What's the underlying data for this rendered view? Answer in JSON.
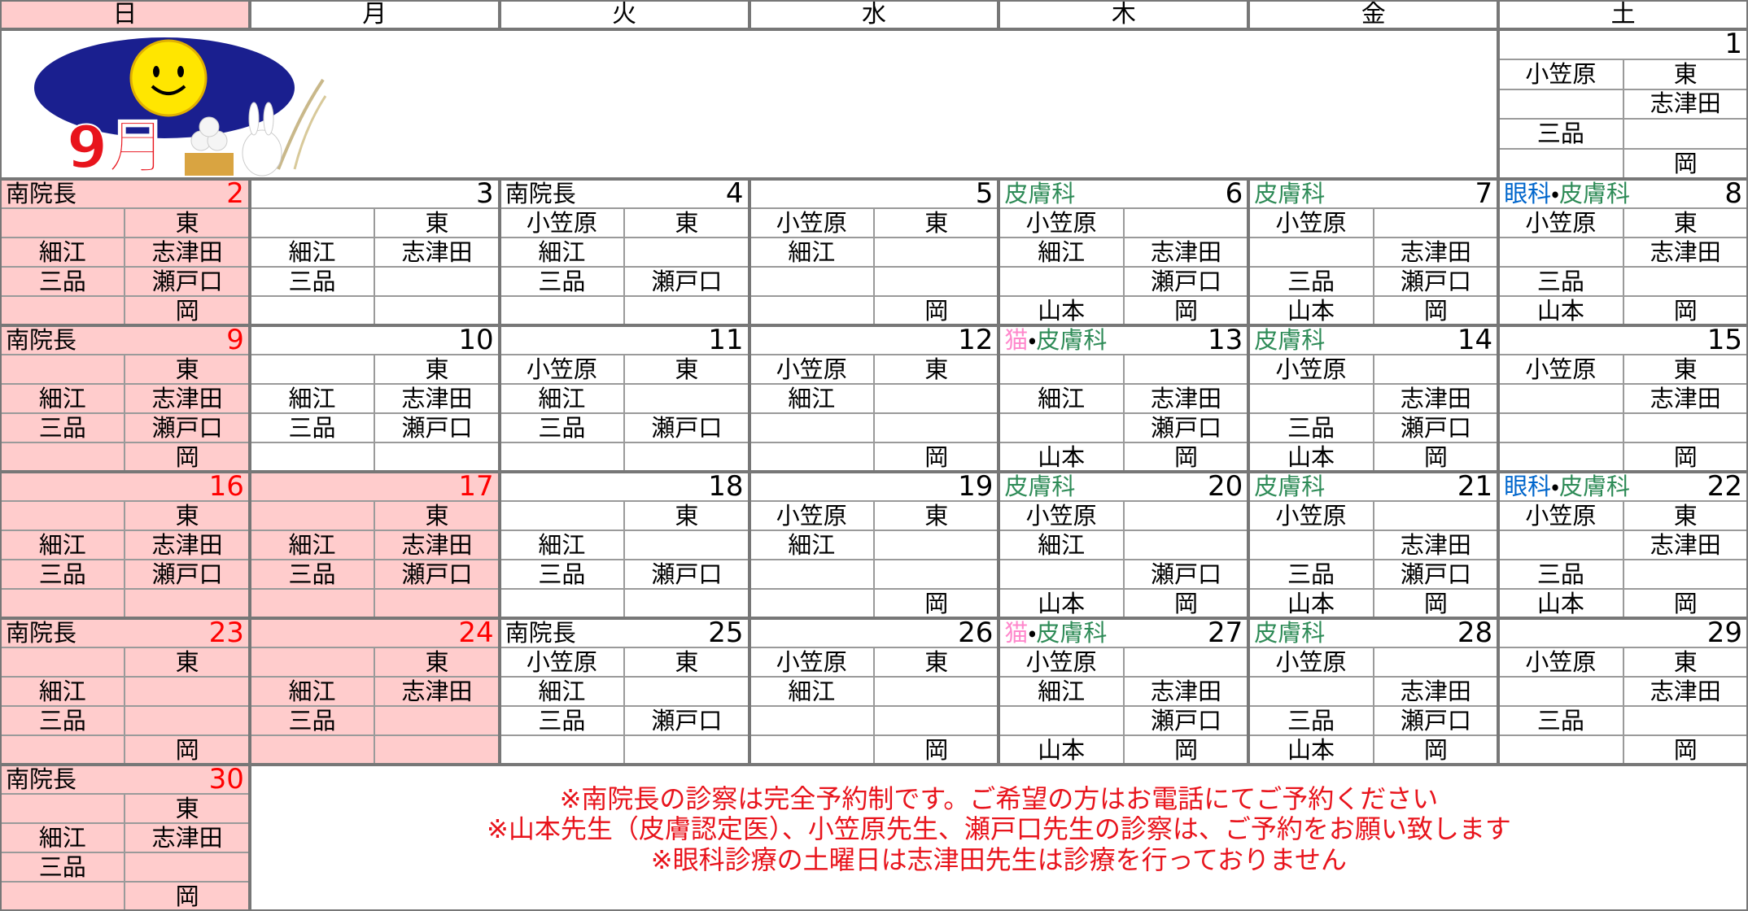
{
  "weekdays": [
    "日",
    "月",
    "火",
    "水",
    "木",
    "金",
    "土"
  ],
  "banner": {
    "month_label": "9月"
  },
  "weeks": [
    {
      "days": [
        null,
        null,
        null,
        null,
        null,
        null,
        {
          "date": 1,
          "holiday": false,
          "label": null,
          "rows": [
            [
              "小笠原",
              "東"
            ],
            [
              null,
              "志津田"
            ],
            [
              "三品",
              null
            ],
            [
              null,
              "岡"
            ]
          ]
        }
      ]
    },
    {
      "days": [
        {
          "date": 2,
          "holiday": true,
          "label": [
            {
              "text": "南院長",
              "color": "#000000"
            }
          ],
          "rows": [
            [
              null,
              "東"
            ],
            [
              "細江",
              "志津田"
            ],
            [
              "三品",
              "瀬戸口"
            ],
            [
              null,
              "岡"
            ]
          ]
        },
        {
          "date": 3,
          "holiday": false,
          "label": null,
          "rows": [
            [
              null,
              "東"
            ],
            [
              "細江",
              "志津田"
            ],
            [
              "三品",
              null
            ],
            [
              null,
              null
            ]
          ]
        },
        {
          "date": 4,
          "holiday": false,
          "label": [
            {
              "text": "南院長",
              "color": "#000000"
            }
          ],
          "rows": [
            [
              "小笠原",
              "東"
            ],
            [
              "細江",
              null
            ],
            [
              "三品",
              "瀬戸口"
            ],
            [
              null,
              null
            ]
          ]
        },
        {
          "date": 5,
          "holiday": false,
          "label": null,
          "rows": [
            [
              "小笠原",
              "東"
            ],
            [
              "細江",
              null
            ],
            [
              null,
              null
            ],
            [
              null,
              "岡"
            ]
          ]
        },
        {
          "date": 6,
          "holiday": false,
          "label": [
            {
              "text": "皮膚科",
              "color": "#2e8b57"
            }
          ],
          "rows": [
            [
              "小笠原",
              null
            ],
            [
              "細江",
              "志津田"
            ],
            [
              null,
              "瀬戸口"
            ],
            [
              "山本",
              "岡"
            ]
          ]
        },
        {
          "date": 7,
          "holiday": false,
          "label": [
            {
              "text": "皮膚科",
              "color": "#2e8b57"
            }
          ],
          "rows": [
            [
              "小笠原",
              null
            ],
            [
              null,
              "志津田"
            ],
            [
              "三品",
              "瀬戸口"
            ],
            [
              "山本",
              "岡"
            ]
          ]
        },
        {
          "date": 8,
          "holiday": false,
          "label": [
            {
              "text": "眼科",
              "color": "#0066cc"
            },
            {
              "text": "・",
              "color": "#000000"
            },
            {
              "text": "皮膚科",
              "color": "#2e8b57"
            }
          ],
          "rows": [
            [
              "小笠原",
              "東"
            ],
            [
              null,
              "志津田"
            ],
            [
              "三品",
              null
            ],
            [
              "山本",
              "岡"
            ]
          ]
        }
      ]
    },
    {
      "days": [
        {
          "date": 9,
          "holiday": true,
          "label": [
            {
              "text": "南院長",
              "color": "#000000"
            }
          ],
          "rows": [
            [
              null,
              "東"
            ],
            [
              "細江",
              "志津田"
            ],
            [
              "三品",
              "瀬戸口"
            ],
            [
              null,
              "岡"
            ]
          ]
        },
        {
          "date": 10,
          "holiday": false,
          "label": null,
          "rows": [
            [
              null,
              "東"
            ],
            [
              "細江",
              "志津田"
            ],
            [
              "三品",
              "瀬戸口"
            ],
            [
              null,
              null
            ]
          ]
        },
        {
          "date": 11,
          "holiday": false,
          "label": null,
          "rows": [
            [
              "小笠原",
              "東"
            ],
            [
              "細江",
              null
            ],
            [
              "三品",
              "瀬戸口"
            ],
            [
              null,
              null
            ]
          ]
        },
        {
          "date": 12,
          "holiday": false,
          "label": null,
          "rows": [
            [
              "小笠原",
              "東"
            ],
            [
              "細江",
              null
            ],
            [
              null,
              null
            ],
            [
              null,
              "岡"
            ]
          ]
        },
        {
          "date": 13,
          "holiday": false,
          "label": [
            {
              "text": "猫",
              "color": "#ff88cc"
            },
            {
              "text": "・",
              "color": "#000000"
            },
            {
              "text": "皮膚科",
              "color": "#2e8b57"
            }
          ],
          "rows": [
            [
              null,
              null
            ],
            [
              "細江",
              "志津田"
            ],
            [
              null,
              "瀬戸口"
            ],
            [
              "山本",
              "岡"
            ]
          ]
        },
        {
          "date": 14,
          "holiday": false,
          "label": [
            {
              "text": "皮膚科",
              "color": "#2e8b57"
            }
          ],
          "rows": [
            [
              "小笠原",
              null
            ],
            [
              null,
              "志津田"
            ],
            [
              "三品",
              "瀬戸口"
            ],
            [
              "山本",
              "岡"
            ]
          ]
        },
        {
          "date": 15,
          "holiday": false,
          "label": null,
          "rows": [
            [
              "小笠原",
              "東"
            ],
            [
              null,
              "志津田"
            ],
            [
              null,
              null
            ],
            [
              null,
              "岡"
            ]
          ]
        }
      ]
    },
    {
      "days": [
        {
          "date": 16,
          "holiday": true,
          "label": null,
          "rows": [
            [
              null,
              "東"
            ],
            [
              "細江",
              "志津田"
            ],
            [
              "三品",
              "瀬戸口"
            ],
            [
              null,
              null
            ]
          ]
        },
        {
          "date": 17,
          "holiday": true,
          "label": null,
          "rows": [
            [
              null,
              "東"
            ],
            [
              "細江",
              "志津田"
            ],
            [
              "三品",
              "瀬戸口"
            ],
            [
              null,
              null
            ]
          ]
        },
        {
          "date": 18,
          "holiday": false,
          "label": null,
          "rows": [
            [
              null,
              "東"
            ],
            [
              "細江",
              null
            ],
            [
              "三品",
              "瀬戸口"
            ],
            [
              null,
              null
            ]
          ]
        },
        {
          "date": 19,
          "holiday": false,
          "label": null,
          "rows": [
            [
              "小笠原",
              "東"
            ],
            [
              "細江",
              null
            ],
            [
              null,
              null
            ],
            [
              null,
              "岡"
            ]
          ]
        },
        {
          "date": 20,
          "holiday": false,
          "label": [
            {
              "text": "皮膚科",
              "color": "#2e8b57"
            }
          ],
          "rows": [
            [
              "小笠原",
              null
            ],
            [
              "細江",
              null
            ],
            [
              null,
              "瀬戸口"
            ],
            [
              "山本",
              "岡"
            ]
          ]
        },
        {
          "date": 21,
          "holiday": false,
          "label": [
            {
              "text": "皮膚科",
              "color": "#2e8b57"
            }
          ],
          "rows": [
            [
              "小笠原",
              null
            ],
            [
              null,
              "志津田"
            ],
            [
              "三品",
              "瀬戸口"
            ],
            [
              "山本",
              "岡"
            ]
          ]
        },
        {
          "date": 22,
          "holiday": false,
          "label": [
            {
              "text": "眼科",
              "color": "#0066cc"
            },
            {
              "text": "・",
              "color": "#000000"
            },
            {
              "text": "皮膚科",
              "color": "#2e8b57"
            }
          ],
          "rows": [
            [
              "小笠原",
              "東"
            ],
            [
              null,
              "志津田"
            ],
            [
              "三品",
              null
            ],
            [
              "山本",
              "岡"
            ]
          ]
        }
      ]
    },
    {
      "days": [
        {
          "date": 23,
          "holiday": true,
          "label": [
            {
              "text": "南院長",
              "color": "#000000"
            }
          ],
          "rows": [
            [
              null,
              "東"
            ],
            [
              "細江",
              null
            ],
            [
              "三品",
              null
            ],
            [
              null,
              "岡"
            ]
          ]
        },
        {
          "date": 24,
          "holiday": true,
          "label": null,
          "rows": [
            [
              null,
              "東"
            ],
            [
              "細江",
              "志津田"
            ],
            [
              "三品",
              null
            ],
            [
              null,
              null
            ]
          ]
        },
        {
          "date": 25,
          "holiday": false,
          "label": [
            {
              "text": "南院長",
              "color": "#000000"
            }
          ],
          "rows": [
            [
              "小笠原",
              "東"
            ],
            [
              "細江",
              null
            ],
            [
              "三品",
              "瀬戸口"
            ],
            [
              null,
              null
            ]
          ]
        },
        {
          "date": 26,
          "holiday": false,
          "label": null,
          "rows": [
            [
              "小笠原",
              "東"
            ],
            [
              "細江",
              null
            ],
            [
              null,
              null
            ],
            [
              null,
              "岡"
            ]
          ]
        },
        {
          "date": 27,
          "holiday": false,
          "label": [
            {
              "text": "猫",
              "color": "#ff88cc"
            },
            {
              "text": "・",
              "color": "#000000"
            },
            {
              "text": "皮膚科",
              "color": "#2e8b57"
            }
          ],
          "rows": [
            [
              "小笠原",
              null
            ],
            [
              "細江",
              "志津田"
            ],
            [
              null,
              "瀬戸口"
            ],
            [
              "山本",
              "岡"
            ]
          ]
        },
        {
          "date": 28,
          "holiday": false,
          "label": [
            {
              "text": "皮膚科",
              "color": "#2e8b57"
            }
          ],
          "rows": [
            [
              "小笠原",
              null
            ],
            [
              null,
              "志津田"
            ],
            [
              "三品",
              "瀬戸口"
            ],
            [
              "山本",
              "岡"
            ]
          ]
        },
        {
          "date": 29,
          "holiday": false,
          "label": null,
          "rows": [
            [
              "小笠原",
              "東"
            ],
            [
              null,
              "志津田"
            ],
            [
              "三品",
              null
            ],
            [
              null,
              "岡"
            ]
          ]
        }
      ]
    },
    {
      "days": [
        {
          "date": 30,
          "holiday": true,
          "label": [
            {
              "text": "南院長",
              "color": "#000000"
            }
          ],
          "rows": [
            [
              null,
              "東"
            ],
            [
              "細江",
              "志津田"
            ],
            [
              "三品",
              null
            ],
            [
              null,
              "岡"
            ]
          ]
        },
        null,
        null,
        null,
        null,
        null,
        null
      ]
    }
  ],
  "notes": [
    "※南院長の診察は完全予約制です。ご希望の方はお電話にてご予約ください",
    "※山本先生（皮膚認定医）、小笠原先生、瀬戸口先生の診察は、ご予約をお願い致します",
    "※眼科診療の土曜日は志津田先生は診療を行っておりません"
  ]
}
